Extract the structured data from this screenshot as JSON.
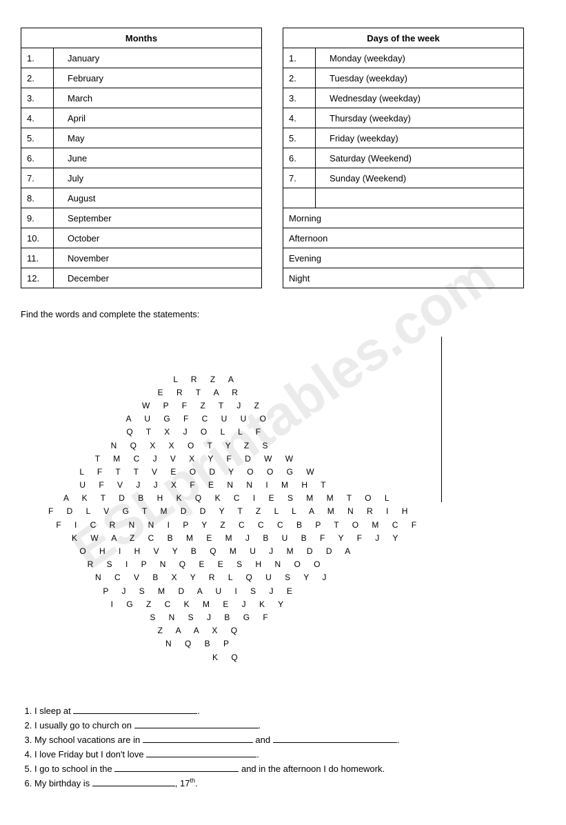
{
  "watermark": "ESLprintables.com",
  "tables": {
    "months": {
      "header": "Months",
      "rows": [
        {
          "num": "1.",
          "label": "January"
        },
        {
          "num": "2.",
          "label": "February"
        },
        {
          "num": "3.",
          "label": "March"
        },
        {
          "num": "4.",
          "label": "April"
        },
        {
          "num": "5.",
          "label": "May"
        },
        {
          "num": "6.",
          "label": "June"
        },
        {
          "num": "7.",
          "label": "July"
        },
        {
          "num": "8.",
          "label": "August"
        },
        {
          "num": "9.",
          "label": "September"
        },
        {
          "num": "10.",
          "label": "October"
        },
        {
          "num": "11.",
          "label": "November"
        },
        {
          "num": "12.",
          "label": "December"
        }
      ]
    },
    "days": {
      "header": "Days of the week",
      "rows": [
        {
          "num": "1.",
          "label": "Monday (weekday)"
        },
        {
          "num": "2.",
          "label": "Tuesday (weekday)"
        },
        {
          "num": "3.",
          "label": "Wednesday (weekday)"
        },
        {
          "num": "4.",
          "label": "Thursday (weekday)"
        },
        {
          "num": "5.",
          "label": "Friday (weekday)"
        },
        {
          "num": "6.",
          "label": "Saturday (Weekend)"
        },
        {
          "num": "7.",
          "label": "Sunday (Weekend)"
        },
        {
          "num": "",
          "label": ""
        },
        {
          "num": "",
          "label": "Morning",
          "nopad": true
        },
        {
          "num": "",
          "label": "Afternoon",
          "nopad": true
        },
        {
          "num": "",
          "label": "Evening",
          "nopad": true
        },
        {
          "num": "",
          "label": "Night",
          "nopad": true
        }
      ]
    }
  },
  "instruction": "Find the words and complete the statements:",
  "puzzle_lines": [
    "                L R Z A                    ",
    "              E R T A R                    ",
    "            W P F Z T J Z                  ",
    "          A U G F C U U O                  ",
    "          Q T X J O L L F                  ",
    "        N Q X X O T Y Z S                  ",
    "      T M C J V X Y F D W W                ",
    "    L F T T V E O D Y O O G W              ",
    "    U F V J J X F E N N I M H T            ",
    "  A K T D B H K Q K C I E S M M T O L      ",
    "F D L V G T M D D Y T Z L L A M N R I H    ",
    " F I C R N N I P Y Z C C C B P T O M C F   ",
    "   K W A Z C B M E M J B U B F Y F J Y     ",
    "    O H I H V Y B Q M U J M D D A          ",
    "     R S I P N Q E E S H N O O             ",
    "      N C V B X Y R L Q U S Y J            ",
    "       P J S M D A U I S J E              ",
    "        I G Z C K M E J K Y               ",
    "             S N S J B G F                ",
    "              Z A A X Q                   ",
    "               N Q B P                    ",
    "                     K Q                  "
  ],
  "statements": [
    {
      "pre": "I sleep at ",
      "blank_w": 180,
      "post": "."
    },
    {
      "pre": "I usually go to church on ",
      "blank_w": 180,
      "post": "."
    },
    {
      "pre": "My school vacations are in ",
      "blank_w": 160,
      "mid": " and ",
      "blank2_w": 180,
      "post": "."
    },
    {
      "pre": "I love Friday but I don't love ",
      "blank_w": 160,
      "post": "."
    },
    {
      "pre": "I go to school in the ",
      "blank_w": 180,
      "post": " and in the afternoon I do homework."
    },
    {
      "pre": "My birthday is ",
      "blank_w": 120,
      "post": ", 17",
      "sup": "th",
      "post2": "."
    }
  ],
  "colors": {
    "text": "#000000",
    "border": "#000000",
    "background": "#ffffff",
    "watermark": "rgba(0,0,0,0.08)"
  }
}
